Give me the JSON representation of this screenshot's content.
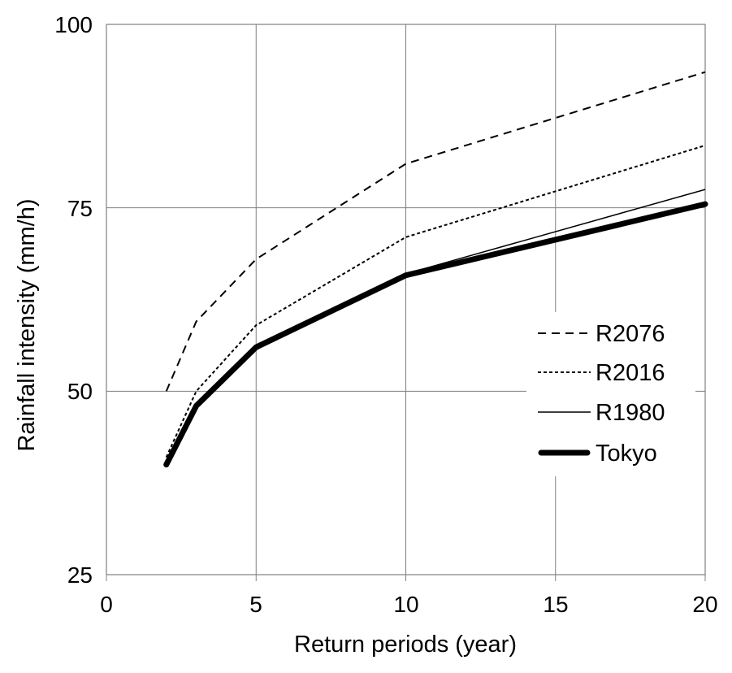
{
  "figure": {
    "background_color": "#ffffff",
    "text_color": "#000000",
    "grid_color": "#808080",
    "series_color": "#000000"
  },
  "chart_data": {
    "type": "line",
    "title": "",
    "xlabel": "Return periods (year)",
    "ylabel": "Rainfall intensity (mm/h)",
    "xlim": [
      0,
      20
    ],
    "ylim": [
      25,
      100
    ],
    "xticks": [
      0,
      5,
      10,
      15,
      20
    ],
    "yticks": [
      25,
      50,
      75,
      100
    ],
    "x_gridlines": [
      5,
      10,
      15
    ],
    "y_gridlines": [
      50,
      75
    ],
    "grid": true,
    "legend_position": "inside-right",
    "x": [
      2,
      3,
      5,
      10,
      20
    ],
    "series": [
      {
        "name": "R2076",
        "values": [
          50,
          59.5,
          68,
          81,
          93.5
        ],
        "color": "#000000",
        "style": {
          "width": 2,
          "dash": "10 7",
          "cap": "butt"
        }
      },
      {
        "name": "R2016",
        "values": [
          41,
          50,
          59,
          71,
          83.5
        ],
        "color": "#000000",
        "style": {
          "width": 2,
          "dash": "4 3",
          "cap": "butt"
        }
      },
      {
        "name": "R1980",
        "values": [
          40.2,
          48.2,
          56.2,
          66,
          77.5
        ],
        "color": "#000000",
        "style": {
          "width": 1.5,
          "dash": "",
          "cap": "butt"
        }
      },
      {
        "name": "Tokyo",
        "values": [
          40,
          48,
          56,
          65.8,
          75.5
        ],
        "color": "#000000",
        "style": {
          "width": 7,
          "dash": "",
          "cap": "round"
        }
      }
    ]
  }
}
